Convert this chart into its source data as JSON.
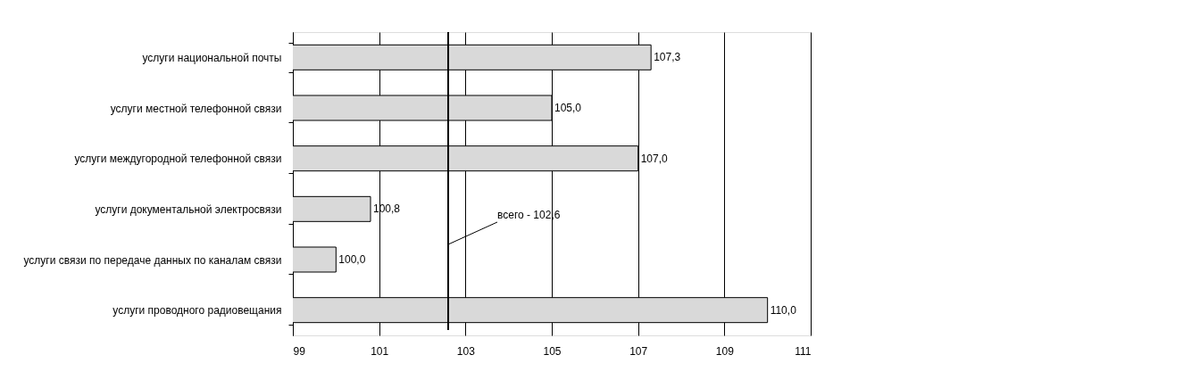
{
  "chart_data": {
    "type": "bar",
    "orientation": "horizontal",
    "categories": [
      "услуги национальной почты",
      "услуги местной телефонной связи",
      "услуги междугородной телефонной связи",
      "услуги документальной электросвязи",
      "услуги связи по передаче данных по каналам связи",
      "услуги проводного радиовещания"
    ],
    "values": [
      107.3,
      105.0,
      107.0,
      100.8,
      100.0,
      110.0
    ],
    "value_labels": [
      "107,3",
      "105,0",
      "107,0",
      "100,8",
      "100,0",
      "110,0"
    ],
    "color": "#d9d9d9",
    "xlim": [
      99,
      111
    ],
    "xticks": [
      99,
      101,
      103,
      105,
      107,
      109,
      111
    ],
    "grid": "x",
    "ref_lines": [
      {
        "axis": "x",
        "value": 102.6,
        "label": "всего - 102,6",
        "color": "#000000"
      }
    ]
  }
}
